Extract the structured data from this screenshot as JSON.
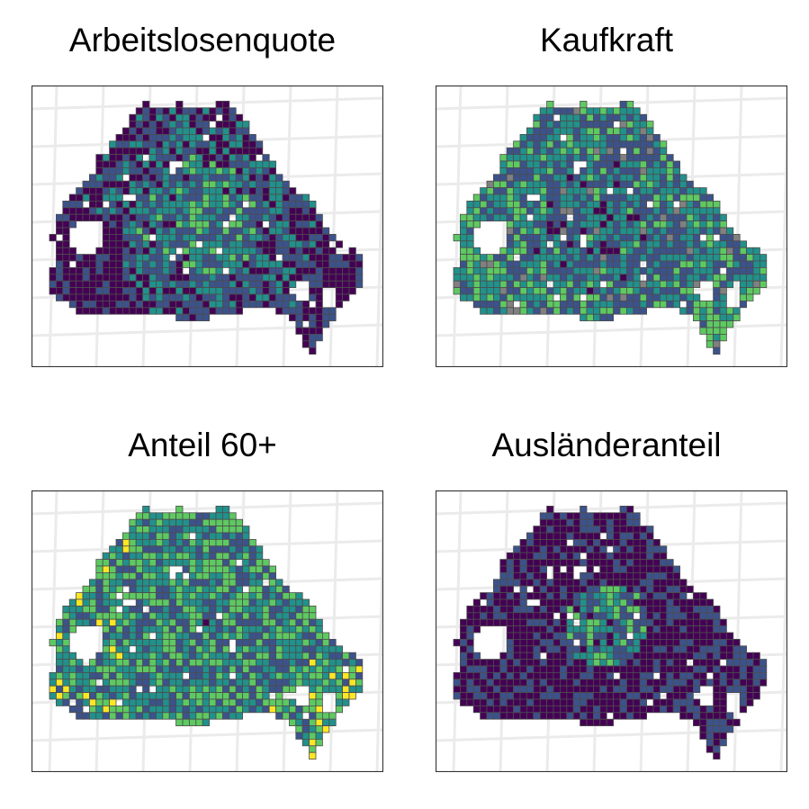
{
  "panels": [
    {
      "title": "Arbeitslosenquote",
      "palette_bias": "mixed"
    },
    {
      "title": "Kaufkraft",
      "palette_bias": "mid"
    },
    {
      "title": "Anteil 60+",
      "palette_bias": "mid-high"
    },
    {
      "title": "Ausländeranteil",
      "palette_bias": "low"
    }
  ],
  "colors": {
    "viridis": [
      "#440154",
      "#3b528b",
      "#21918c",
      "#5ec962",
      "#fde725"
    ],
    "missing": "#808080",
    "cell_border": "#4d4d4d",
    "frame": "#333333",
    "grid": "#ebebeb"
  }
}
